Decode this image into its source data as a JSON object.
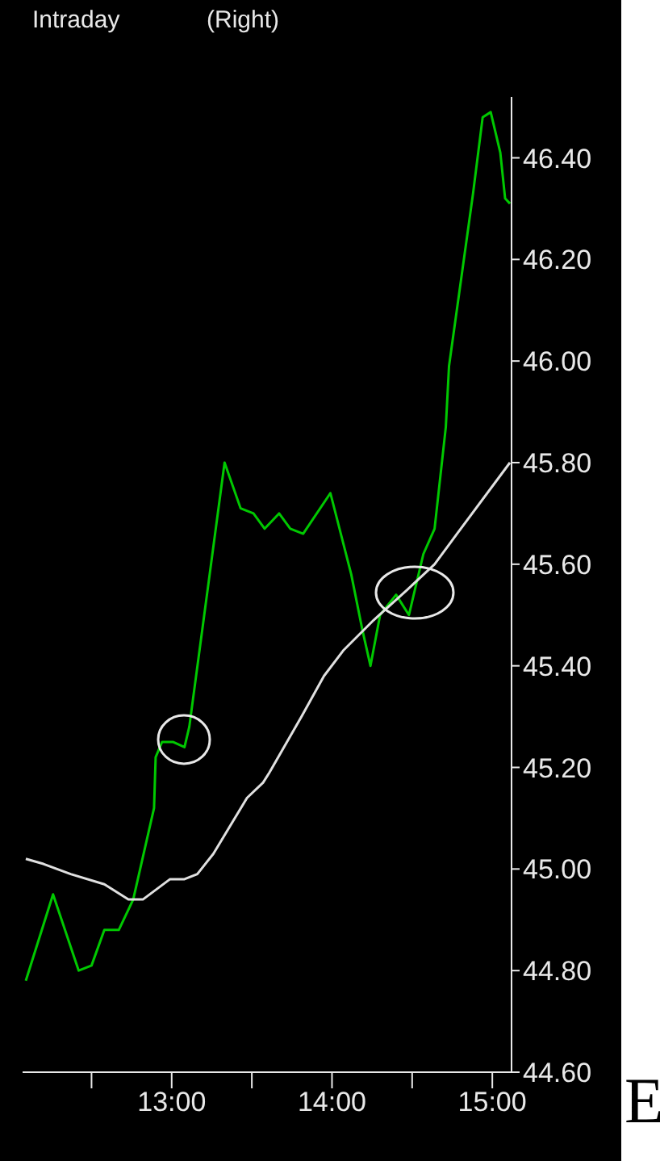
{
  "chart_data": {
    "type": "line",
    "title": "Intraday",
    "subtitle": "(Right)",
    "annotations": [
      "E"
    ],
    "xlim": [
      12.07,
      15.12
    ],
    "xticks": [
      {
        "value": 12.5,
        "label": null
      },
      {
        "value": 13,
        "label": "13:00"
      },
      {
        "value": 13.5,
        "label": null
      },
      {
        "value": 14,
        "label": "14:00"
      },
      {
        "value": 14.5,
        "label": null
      },
      {
        "value": 15,
        "label": "15:00"
      }
    ],
    "ylim": [
      44.6,
      46.52
    ],
    "yticks": [
      {
        "value": 44.6,
        "label": "44.60"
      },
      {
        "value": 44.8,
        "label": "44.80"
      },
      {
        "value": 45.0,
        "label": "45.00"
      },
      {
        "value": 45.2,
        "label": "45.20"
      },
      {
        "value": 45.4,
        "label": "45.40"
      },
      {
        "value": 45.6,
        "label": "45.60"
      },
      {
        "value": 45.8,
        "label": "45.80"
      },
      {
        "value": 46.0,
        "label": "46.00"
      },
      {
        "value": 46.2,
        "label": "46.20"
      },
      {
        "value": 46.4,
        "label": "46.40"
      }
    ],
    "grid": false,
    "marker": "none",
    "line_style": "solid",
    "series": [
      {
        "color": "#00c800",
        "x": [
          12.09,
          12.26,
          12.42,
          12.5,
          12.58,
          12.67,
          12.76,
          12.89,
          12.9,
          12.94,
          13.01,
          13.08,
          13.11,
          13.33,
          13.43,
          13.51,
          13.58,
          13.67,
          13.74,
          13.82,
          13.99,
          14.12,
          14.19,
          14.24,
          14.3,
          14.4,
          14.48,
          14.57,
          14.64,
          14.71,
          14.73,
          14.88,
          14.94,
          14.99,
          15.05,
          15.08,
          15.11
        ],
        "values": [
          44.78,
          44.95,
          44.8,
          44.81,
          44.88,
          44.88,
          44.94,
          45.12,
          45.22,
          45.25,
          45.25,
          45.24,
          45.28,
          45.8,
          45.71,
          45.7,
          45.67,
          45.7,
          45.67,
          45.66,
          45.74,
          45.58,
          45.47,
          45.4,
          45.5,
          45.54,
          45.5,
          45.62,
          45.67,
          45.87,
          45.99,
          46.33,
          46.48,
          46.49,
          46.41,
          46.32,
          46.31
        ]
      },
      {
        "color": "#e0e0e0",
        "x": [
          12.09,
          12.2,
          12.37,
          12.58,
          12.73,
          12.82,
          12.99,
          13.08,
          13.16,
          13.26,
          13.47,
          13.57,
          13.61,
          13.81,
          13.95,
          14.07,
          14.26,
          14.47,
          14.64,
          14.78,
          15.11
        ],
        "values": [
          45.02,
          45.01,
          44.99,
          44.97,
          44.94,
          44.94,
          44.98,
          44.98,
          44.99,
          45.03,
          45.14,
          45.17,
          45.19,
          45.3,
          45.38,
          45.43,
          45.49,
          45.55,
          45.6,
          45.66,
          45.8
        ]
      }
    ]
  }
}
